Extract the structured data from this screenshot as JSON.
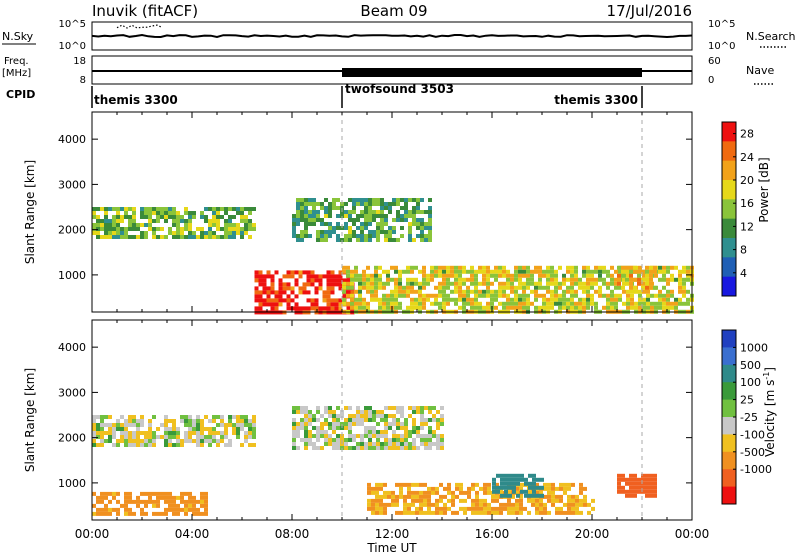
{
  "header": {
    "station": "Inuvik (fitACF)",
    "beam": "Beam 09",
    "date": "17/Jul/2016"
  },
  "top_panels": {
    "nsky": {
      "label": "N.Sky",
      "ticks_left": [
        "10^5",
        "10^0"
      ],
      "ticks_right": [
        "10^5",
        "10^0"
      ],
      "right_label": "N.Search"
    },
    "freq": {
      "label_line1": "Freq.",
      "label_line2": "[MHz]",
      "ticks_left": [
        "18",
        "8"
      ],
      "ticks_right": [
        "60",
        "0"
      ],
      "right_label": "Nave"
    },
    "cpid": {
      "label": "CPID",
      "segments": [
        {
          "name": "themis 3300",
          "start": 0,
          "end": 10
        },
        {
          "name": "twofsound 3503",
          "start": 10,
          "end": 22
        },
        {
          "name": "themis 3300",
          "start": 22,
          "end": 24
        }
      ]
    }
  },
  "chart_data": [
    {
      "type": "heatmap",
      "title": "Power",
      "xlabel": "Time UT",
      "ylabel": "Slant Range [km]",
      "x_ticks": [
        "00:00",
        "04:00",
        "08:00",
        "12:00",
        "16:00",
        "20:00",
        "00:00"
      ],
      "xlim_hours": [
        0,
        24
      ],
      "y_ticks": [
        1000,
        2000,
        3000,
        4000
      ],
      "ylim": [
        180,
        4600
      ],
      "colorbar": {
        "label": "Power [dB]",
        "ticks": [
          4,
          8,
          12,
          16,
          20,
          24,
          28
        ],
        "range": [
          0,
          30
        ],
        "colors": [
          "#1818e0",
          "#1f5fb5",
          "#2f8f8f",
          "#3a8a3a",
          "#8ac43a",
          "#e6d81a",
          "#f2a21a",
          "#f06a10",
          "#ee1010"
        ]
      },
      "features": [
        {
          "time_start": "00:00",
          "time_end": "06:30",
          "range_km": [
            1800,
            2500
          ],
          "power_dB": 14
        },
        {
          "time_start": "06:30",
          "time_end": "10:30",
          "range_km": [
            200,
            1100
          ],
          "power_dB": 28
        },
        {
          "time_start": "08:00",
          "time_end": "13:30",
          "range_km": [
            1800,
            2700
          ],
          "power_dB": 12
        },
        {
          "time_start": "10:00",
          "time_end": "24:00",
          "range_km": [
            200,
            1200
          ],
          "power_dB": 18
        },
        {
          "time_start": "21:00",
          "time_end": "22:30",
          "range_km": [
            700,
            1200
          ],
          "power_dB": 20
        }
      ]
    },
    {
      "type": "heatmap",
      "title": "Velocity",
      "xlabel": "Time UT",
      "ylabel": "Slant Range [km]",
      "x_ticks": [
        "00:00",
        "04:00",
        "08:00",
        "12:00",
        "16:00",
        "20:00",
        "00:00"
      ],
      "xlim_hours": [
        0,
        24
      ],
      "y_ticks": [
        1000,
        2000,
        3000,
        4000
      ],
      "ylim": [
        180,
        4600
      ],
      "colorbar": {
        "label": "Velocity [m s-1]",
        "ticks": [
          1000,
          500,
          100,
          25,
          -25,
          -100,
          -500,
          -1000
        ],
        "colors": [
          "#2040c0",
          "#3a6fd0",
          "#2f8a8a",
          "#3a9a3a",
          "#70c040",
          "#c8c8c8",
          "#f0c020",
          "#f09020",
          "#f06020",
          "#ee1010"
        ]
      },
      "features": [
        {
          "time_start": "00:00",
          "time_end": "06:30",
          "range_km": [
            1800,
            2500
          ],
          "velocity_ms": 0
        },
        {
          "time_start": "00:00",
          "time_end": "04:30",
          "range_km": [
            300,
            800
          ],
          "velocity_ms": -150
        },
        {
          "time_start": "08:00",
          "time_end": "14:00",
          "range_km": [
            1800,
            2700
          ],
          "velocity_ms": 0
        },
        {
          "time_start": "11:00",
          "time_end": "20:00",
          "range_km": [
            300,
            1000
          ],
          "velocity_ms": -100
        },
        {
          "time_start": "16:00",
          "time_end": "18:00",
          "range_km": [
            700,
            1200
          ],
          "velocity_ms": 300
        },
        {
          "time_start": "21:00",
          "time_end": "22:30",
          "range_km": [
            700,
            1200
          ],
          "velocity_ms": -700
        }
      ]
    }
  ]
}
